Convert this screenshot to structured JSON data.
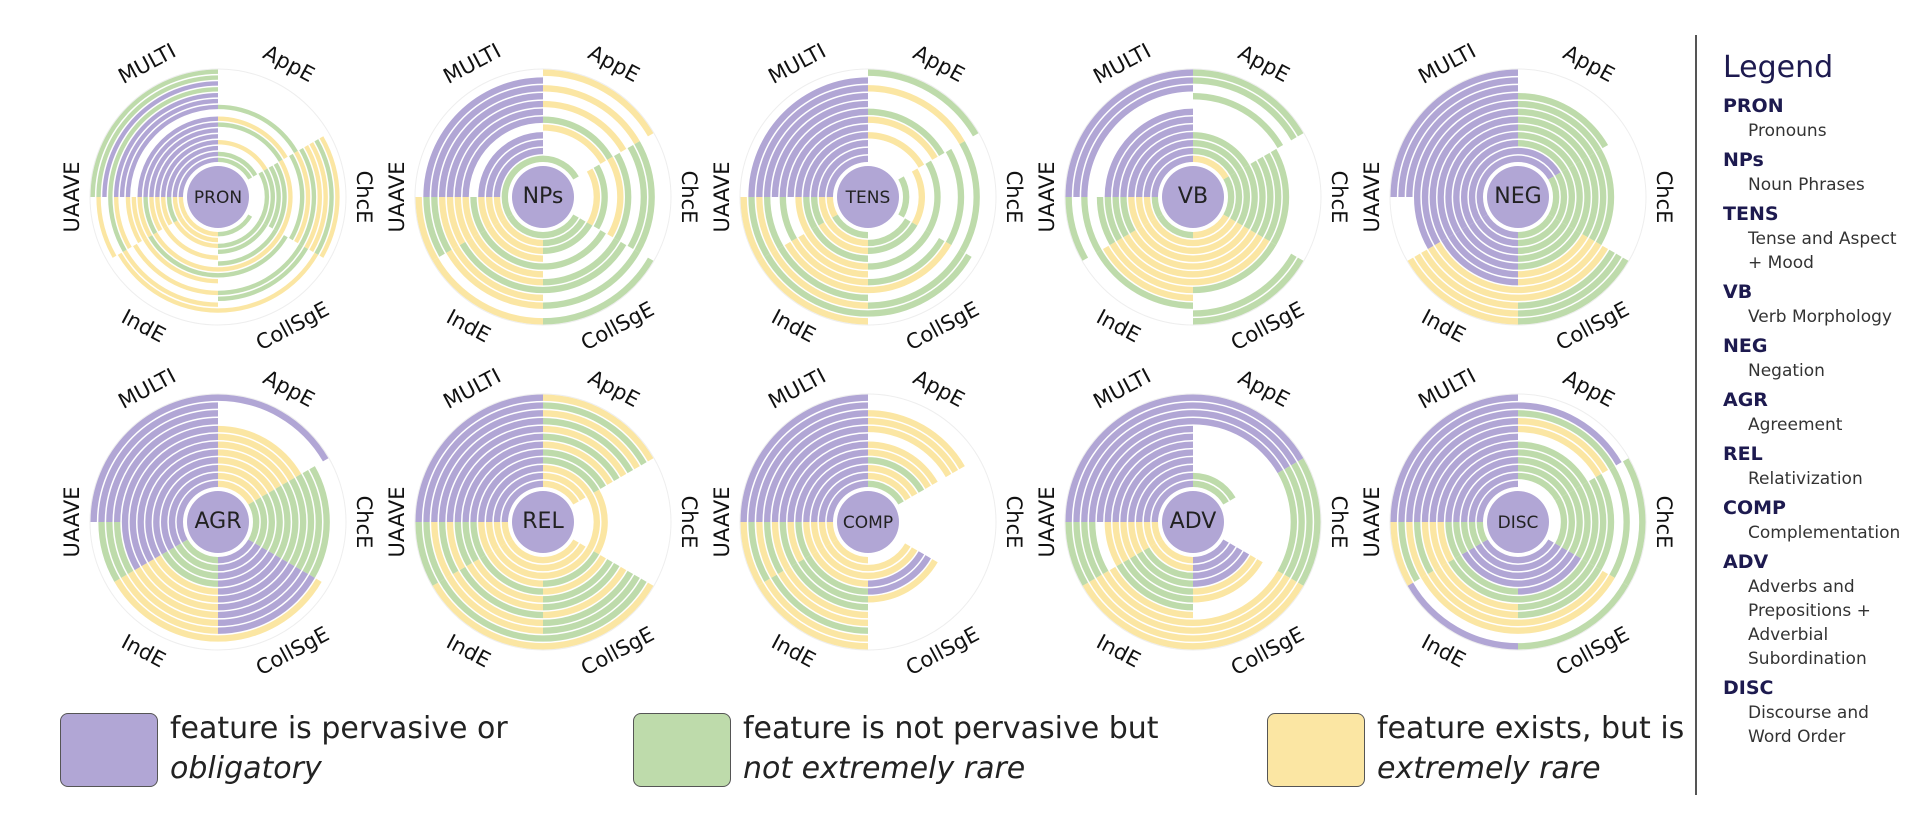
{
  "colors": {
    "pervasive": "#b1a6d5",
    "not_rare": "#bedbab",
    "rare": "#fbe6a3"
  },
  "legend": {
    "title": "Legend",
    "items": [
      {
        "abbr": "PRON",
        "full": "Pronouns"
      },
      {
        "abbr": "NPs",
        "full": "Noun Phrases"
      },
      {
        "abbr": "TENS",
        "full": "Tense and Aspect + Mood"
      },
      {
        "abbr": "VB",
        "full": "Verb Morphology"
      },
      {
        "abbr": "NEG",
        "full": "Negation"
      },
      {
        "abbr": "AGR",
        "full": "Agreement"
      },
      {
        "abbr": "REL",
        "full": "Relativization"
      },
      {
        "abbr": "COMP",
        "full": "Complementation"
      },
      {
        "abbr": "ADV",
        "full": "Adverbs and Prepositions + Adverbial Subordination"
      },
      {
        "abbr": "DISC",
        "full": "Discourse and Word Order"
      }
    ]
  },
  "bottom_legend": [
    {
      "line1": "feature is pervasive or",
      "line2": "obligatory",
      "color_key": "pervasive"
    },
    {
      "line1": "feature is not pervasive but",
      "line2": "not extremely rare",
      "color_key": "not_rare"
    },
    {
      "line1": "feature exists, but is",
      "line2": "extremely rare",
      "color_key": "rare"
    }
  ],
  "chart_data": {
    "type": "radial",
    "dialect_labels": [
      "MULTI",
      "AppE",
      "ChcE",
      "CollSgE",
      "IndE",
      "UAAVE"
    ],
    "panels": [
      {
        "label": "PRON",
        "rings": [
          [
            3,
            1,
            0,
            1,
            2,
            2
          ],
          [
            3,
            1,
            0,
            0,
            2,
            2
          ],
          [
            3,
            0,
            1,
            1,
            2,
            1
          ],
          [
            3,
            2,
            1,
            1,
            0,
            2
          ],
          [
            3,
            0,
            1,
            0,
            2,
            2
          ],
          [
            3,
            0,
            1,
            1,
            0,
            2
          ],
          [
            3,
            1,
            2,
            2,
            2,
            1
          ],
          [
            3,
            2,
            0,
            1,
            1,
            2
          ],
          [
            0,
            0,
            1,
            0,
            2,
            2
          ],
          [
            3,
            1,
            2,
            0,
            0,
            2
          ],
          [
            3,
            0,
            1,
            1,
            2,
            0
          ],
          [
            3,
            0,
            2,
            1,
            0,
            2
          ],
          [
            1,
            0,
            2,
            0,
            2,
            1
          ],
          [
            3,
            0,
            1,
            2,
            2,
            0
          ],
          [
            1,
            0,
            2,
            0,
            0,
            2
          ],
          [
            1,
            0,
            0,
            0,
            0,
            0
          ]
        ]
      },
      {
        "label": "NPs",
        "rings": [
          [
            1,
            1,
            0,
            1,
            1,
            1
          ],
          [
            3,
            0,
            0,
            1,
            2,
            2
          ],
          [
            3,
            0,
            2,
            1,
            2,
            2
          ],
          [
            3,
            0,
            1,
            0,
            2,
            2
          ],
          [
            0,
            2,
            0,
            1,
            1,
            1
          ],
          [
            3,
            1,
            2,
            0,
            2,
            2
          ],
          [
            3,
            0,
            1,
            1,
            2,
            2
          ],
          [
            3,
            2,
            0,
            1,
            1,
            2
          ],
          [
            3,
            0,
            1,
            0,
            2,
            2
          ],
          [
            3,
            2,
            1,
            1,
            2,
            1
          ],
          [
            3,
            0,
            0,
            0,
            0,
            1
          ],
          [
            0,
            2,
            0,
            1,
            2,
            2
          ]
        ]
      },
      {
        "label": "TENS",
        "rings": [
          [
            3,
            0,
            1,
            0,
            1,
            2
          ],
          [
            3,
            0,
            0,
            1,
            2,
            2
          ],
          [
            3,
            0,
            2,
            1,
            2,
            1
          ],
          [
            3,
            2,
            0,
            0,
            1,
            1
          ],
          [
            3,
            0,
            1,
            1,
            2,
            2
          ],
          [
            3,
            2,
            0,
            0,
            2,
            0
          ],
          [
            3,
            1,
            0,
            1,
            2,
            1
          ],
          [
            3,
            0,
            1,
            2,
            2,
            0
          ],
          [
            3,
            0,
            0,
            0,
            1,
            1
          ],
          [
            3,
            2,
            1,
            1,
            2,
            2
          ],
          [
            3,
            0,
            0,
            1,
            1,
            1
          ],
          [
            0,
            1,
            0,
            0,
            2,
            2
          ]
        ]
      },
      {
        "label": "VB",
        "rings": [
          [
            3,
            2,
            1,
            2,
            1,
            1
          ],
          [
            3,
            1,
            1,
            2,
            2,
            2
          ],
          [
            3,
            1,
            1,
            2,
            2,
            2
          ],
          [
            3,
            1,
            1,
            2,
            2,
            2
          ],
          [
            3,
            0,
            1,
            2,
            2,
            1
          ],
          [
            3,
            0,
            1,
            2,
            2,
            1
          ],
          [
            3,
            0,
            1,
            2,
            2,
            1
          ],
          [
            0,
            0,
            1,
            1,
            2,
            1
          ],
          [
            0,
            1,
            0,
            0,
            2,
            0
          ],
          [
            3,
            0,
            0,
            0,
            1,
            1
          ],
          [
            3,
            1,
            0,
            1,
            0,
            0
          ],
          [
            3,
            1,
            0,
            1,
            0,
            1
          ]
        ]
      },
      {
        "label": "NEG",
        "rings": [
          [
            3,
            3,
            1,
            1,
            3,
            3
          ],
          [
            3,
            3,
            1,
            1,
            3,
            3
          ],
          [
            3,
            1,
            1,
            1,
            3,
            3
          ],
          [
            3,
            1,
            1,
            1,
            3,
            3
          ],
          [
            3,
            1,
            1,
            1,
            3,
            3
          ],
          [
            3,
            1,
            1,
            2,
            3,
            3
          ],
          [
            3,
            1,
            1,
            2,
            3,
            3
          ],
          [
            3,
            1,
            1,
            2,
            2,
            3
          ],
          [
            3,
            1,
            0,
            2,
            2,
            3
          ],
          [
            3,
            0,
            0,
            1,
            2,
            0
          ],
          [
            3,
            0,
            0,
            1,
            2,
            0
          ],
          [
            3,
            0,
            0,
            1,
            2,
            0
          ]
        ]
      },
      {
        "label": "AGR",
        "rings": [
          [
            3,
            2,
            1,
            3,
            1,
            3
          ],
          [
            3,
            2,
            1,
            3,
            1,
            3
          ],
          [
            3,
            2,
            1,
            3,
            1,
            3
          ],
          [
            3,
            2,
            1,
            3,
            1,
            3
          ],
          [
            3,
            2,
            1,
            3,
            2,
            3
          ],
          [
            3,
            2,
            1,
            3,
            2,
            3
          ],
          [
            3,
            2,
            1,
            3,
            2,
            3
          ],
          [
            3,
            2,
            1,
            3,
            2,
            3
          ],
          [
            3,
            0,
            1,
            3,
            2,
            1
          ],
          [
            3,
            0,
            1,
            3,
            2,
            1
          ],
          [
            3,
            0,
            0,
            2,
            2,
            1
          ],
          [
            3,
            3,
            0,
            0,
            0,
            0
          ]
        ]
      },
      {
        "label": "REL",
        "rings": [
          [
            3,
            2,
            0,
            2,
            2,
            2
          ],
          [
            3,
            2,
            0,
            2,
            2,
            2
          ],
          [
            3,
            2,
            2,
            2,
            2,
            2
          ],
          [
            3,
            1,
            2,
            1,
            2,
            2
          ],
          [
            3,
            1,
            0,
            2,
            1,
            1
          ],
          [
            3,
            2,
            0,
            1,
            2,
            1
          ],
          [
            3,
            1,
            0,
            1,
            2,
            1
          ],
          [
            3,
            2,
            0,
            2,
            1,
            2
          ],
          [
            3,
            1,
            0,
            1,
            2,
            1
          ],
          [
            3,
            2,
            0,
            1,
            2,
            2
          ],
          [
            3,
            1,
            0,
            1,
            1,
            1
          ],
          [
            3,
            2,
            0,
            2,
            2,
            1
          ]
        ]
      },
      {
        "label": "COMP",
        "rings": [
          [
            3,
            1,
            0,
            0,
            2,
            2
          ],
          [
            3,
            2,
            0,
            2,
            2,
            2
          ],
          [
            3,
            2,
            0,
            2,
            2,
            2
          ],
          [
            3,
            1,
            0,
            3,
            2,
            2
          ],
          [
            3,
            2,
            0,
            3,
            1,
            1
          ],
          [
            3,
            2,
            0,
            2,
            1,
            2
          ],
          [
            3,
            0,
            0,
            0,
            1,
            1
          ],
          [
            3,
            2,
            0,
            0,
            2,
            2
          ],
          [
            3,
            2,
            0,
            0,
            2,
            1
          ],
          [
            3,
            2,
            0,
            0,
            1,
            2
          ],
          [
            3,
            0,
            0,
            0,
            2,
            1
          ],
          [
            3,
            0,
            0,
            0,
            2,
            2
          ]
        ]
      },
      {
        "label": "ADV",
        "rings": [
          [
            3,
            1,
            0,
            3,
            2,
            2
          ],
          [
            3,
            1,
            0,
            3,
            2,
            2
          ],
          [
            3,
            0,
            0,
            3,
            1,
            2
          ],
          [
            3,
            0,
            0,
            3,
            1,
            2
          ],
          [
            3,
            0,
            0,
            2,
            1,
            2
          ],
          [
            3,
            0,
            0,
            2,
            1,
            2
          ],
          [
            3,
            0,
            0,
            0,
            1,
            2
          ],
          [
            3,
            0,
            0,
            0,
            2,
            0
          ],
          [
            3,
            3,
            1,
            2,
            2,
            1
          ],
          [
            3,
            3,
            1,
            2,
            2,
            1
          ],
          [
            3,
            3,
            1,
            2,
            2,
            1
          ],
          [
            3,
            3,
            1,
            2,
            2,
            1
          ]
        ]
      },
      {
        "label": "DISC",
        "rings": [
          [
            3,
            0,
            0,
            3,
            3,
            1
          ],
          [
            3,
            1,
            1,
            3,
            3,
            1
          ],
          [
            3,
            1,
            1,
            3,
            3,
            1
          ],
          [
            3,
            1,
            1,
            3,
            3,
            1
          ],
          [
            3,
            1,
            1,
            3,
            1,
            1
          ],
          [
            3,
            1,
            1,
            1,
            1,
            2
          ],
          [
            3,
            0,
            1,
            1,
            2,
            2
          ],
          [
            3,
            2,
            1,
            1,
            2,
            2
          ],
          [
            3,
            2,
            0,
            2,
            2,
            1
          ],
          [
            3,
            1,
            1,
            2,
            2,
            2
          ],
          [
            3,
            3,
            0,
            0,
            0,
            1
          ],
          [
            3,
            0,
            1,
            1,
            3,
            2
          ]
        ]
      }
    ]
  }
}
